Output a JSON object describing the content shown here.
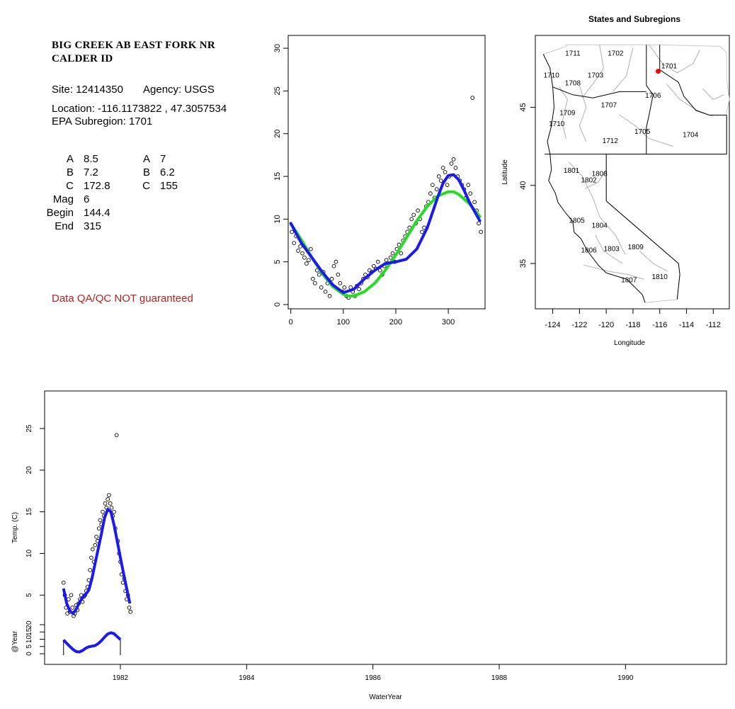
{
  "info": {
    "title_line1": "BIG CREEK AB EAST FORK NR",
    "title_line2": "CALDER ID",
    "site": "Site: 12414350",
    "agency": "Agency: USGS",
    "location": "Location: -116.1173822 , 47.3057534",
    "epa": "EPA Subregion: 1701",
    "params_left": [
      {
        "k": "A",
        "v": "8.5"
      },
      {
        "k": "B",
        "v": "7.2"
      },
      {
        "k": "C",
        "v": "172.8"
      },
      {
        "k": "Mag",
        "v": "6"
      },
      {
        "k": "Begin",
        "v": "144.4"
      },
      {
        "k": "End",
        "v": "315"
      }
    ],
    "params_right": [
      {
        "k": "A",
        "v": "7"
      },
      {
        "k": "B",
        "v": "6.2"
      },
      {
        "k": "C",
        "v": "155"
      }
    ],
    "qa_note": "Data QA/QC NOT guaranteed",
    "qa_color": "#b22222"
  },
  "chart_data": [
    {
      "id": "seasonal",
      "type": "scatter",
      "title": "",
      "xlabel": "",
      "ylabel": "",
      "xlim": [
        -5,
        370
      ],
      "ylim": [
        -0.5,
        31.5
      ],
      "x_ticks": [
        0,
        100,
        200,
        300
      ],
      "y_ticks": [
        0,
        5,
        10,
        15,
        20,
        25,
        30
      ],
      "series": [
        {
          "kind": "points",
          "color": "#000000",
          "x": [
            2,
            6,
            10,
            14,
            18,
            22,
            26,
            30,
            34,
            38,
            42,
            46,
            50,
            54,
            58,
            62,
            66,
            70,
            74,
            78,
            82,
            86,
            90,
            94,
            98,
            102,
            106,
            110,
            114,
            118,
            122,
            126,
            130,
            134,
            138,
            142,
            146,
            150,
            154,
            158,
            162,
            166,
            170,
            174,
            178,
            182,
            186,
            190,
            194,
            198,
            202,
            206,
            210,
            214,
            218,
            222,
            226,
            230,
            234,
            238,
            242,
            246,
            250,
            254,
            258,
            262,
            266,
            270,
            274,
            278,
            282,
            286,
            290,
            294,
            298,
            302,
            306,
            310,
            314,
            318,
            322,
            326,
            330,
            334,
            338,
            342,
            346,
            350,
            354,
            358,
            362
          ],
          "y": [
            8.5,
            7.2,
            8.0,
            6.3,
            6.8,
            6.0,
            5.5,
            4.8,
            5.2,
            6.5,
            3.0,
            2.5,
            4.0,
            3.5,
            2.0,
            3.8,
            1.5,
            2.5,
            1.0,
            3.0,
            4.5,
            5.0,
            3.5,
            2.5,
            1.5,
            2.0,
            1.0,
            0.8,
            2.0,
            1.5,
            1.0,
            2.2,
            1.8,
            2.5,
            3.0,
            3.5,
            3.2,
            4.0,
            3.8,
            4.5,
            4.2,
            5.0,
            4.0,
            3.5,
            4.5,
            5.2,
            4.8,
            5.5,
            6.0,
            5.0,
            6.5,
            7.0,
            6.0,
            7.5,
            8.0,
            8.5,
            9.0,
            10.0,
            10.5,
            9.5,
            11.0,
            10.0,
            8.5,
            9.0,
            11.5,
            12.0,
            13.0,
            14.0,
            12.5,
            13.5,
            15.0,
            14.5,
            16.0,
            15.5,
            14.0,
            15.0,
            16.5,
            17.0,
            16.0,
            15.0,
            14.5,
            14.0,
            13.5,
            12.5,
            14.0,
            13.0,
            24.2,
            12.0,
            11.0,
            9.5,
            8.5
          ]
        },
        {
          "kind": "line",
          "name": "",
          "color": "#22dd22",
          "x": [
            0,
            20,
            40,
            60,
            80,
            100,
            110,
            120,
            140,
            160,
            180,
            200,
            220,
            240,
            260,
            280,
            300,
            310,
            320,
            340,
            360
          ],
          "y": [
            9.5,
            7.6,
            5.5,
            3.6,
            2.1,
            1.2,
            1.0,
            1.0,
            1.5,
            2.5,
            4.0,
            5.8,
            7.8,
            9.8,
            11.5,
            12.7,
            13.2,
            13.2,
            12.9,
            11.8,
            10.3
          ]
        },
        {
          "kind": "line",
          "name": "",
          "color": "#1a1af0",
          "x": [
            0,
            20,
            40,
            60,
            80,
            100,
            120,
            140,
            160,
            180,
            200,
            220,
            240,
            260,
            270,
            280,
            290,
            300,
            310,
            320,
            330,
            340,
            350,
            360
          ],
          "y": [
            9.5,
            7.2,
            5.5,
            3.8,
            2.3,
            1.4,
            1.8,
            3.0,
            4.0,
            4.8,
            5.0,
            5.3,
            6.5,
            9.0,
            10.8,
            12.6,
            14.2,
            15.1,
            15.2,
            14.6,
            13.4,
            12.0,
            10.9,
            9.8
          ]
        }
      ]
    },
    {
      "id": "map",
      "type": "scatter",
      "title": "States and Subregions",
      "xlabel": "Longitude",
      "ylabel": "Latitude",
      "xlim": [
        -125.3,
        -110.8
      ],
      "ylim": [
        32.1,
        49.6
      ],
      "x_ticks": [
        -124,
        -122,
        -120,
        -118,
        -116,
        -114,
        -112
      ],
      "y_ticks": [
        35,
        40,
        45
      ],
      "regions": [
        {
          "label": "1701",
          "lon": -115.3,
          "lat": 47.5
        },
        {
          "label": "1702",
          "lon": -119.3,
          "lat": 48.3
        },
        {
          "label": "1703",
          "lon": -120.8,
          "lat": 46.9
        },
        {
          "label": "1704",
          "lon": -113.7,
          "lat": 43.1
        },
        {
          "label": "1705",
          "lon": -117.3,
          "lat": 43.3
        },
        {
          "label": "1706",
          "lon": -116.5,
          "lat": 45.6
        },
        {
          "label": "1707",
          "lon": -119.8,
          "lat": 45.0
        },
        {
          "label": "1708",
          "lon": -122.5,
          "lat": 46.4
        },
        {
          "label": "1709",
          "lon": -122.9,
          "lat": 44.5
        },
        {
          "label": "1710",
          "lon": -123.7,
          "lat": 43.8
        },
        {
          "label": "1711",
          "lon": -122.5,
          "lat": 48.3
        },
        {
          "label": "1712",
          "lon": -119.7,
          "lat": 42.7
        },
        {
          "label": "1801",
          "lon": -122.6,
          "lat": 40.8
        },
        {
          "label": "1802",
          "lon": -121.3,
          "lat": 40.2
        },
        {
          "label": "1803",
          "lon": -119.6,
          "lat": 35.8
        },
        {
          "label": "1804",
          "lon": -120.5,
          "lat": 37.3
        },
        {
          "label": "1805",
          "lon": -122.2,
          "lat": 37.6
        },
        {
          "label": "1806",
          "lon": -121.3,
          "lat": 35.7
        },
        {
          "label": "1807",
          "lon": -118.3,
          "lat": 33.8
        },
        {
          "label": "1808",
          "lon": -120.5,
          "lat": 40.6
        },
        {
          "label": "1809",
          "lon": -117.8,
          "lat": 35.9
        },
        {
          "label": "1810",
          "lon": -116.0,
          "lat": 34.0
        },
        {
          "label": "1710",
          "lon": -124.1,
          "lat": 46.9
        }
      ],
      "site": {
        "lon": -116.1173822,
        "lat": 47.3057534,
        "color": "#ff0000"
      }
    },
    {
      "id": "timeseries",
      "type": "line",
      "title": "",
      "xlabel": "WaterYear",
      "ylabel": "Temp. (C)",
      "ylabel2": "@Year",
      "xlim": [
        1980.8,
        1991.6
      ],
      "x_ticks": [
        1982,
        1984,
        1986,
        1988,
        1990
      ],
      "ylim": [
        2.3,
        29.5
      ],
      "y_ticks": [
        5,
        10,
        15,
        20,
        25
      ],
      "sub_ticks": [
        0,
        5,
        10,
        15,
        20
      ],
      "series": [
        {
          "kind": "points",
          "color": "#000000",
          "x": [
            1981.1,
            1981.12,
            1981.14,
            1981.16,
            1981.18,
            1981.2,
            1981.22,
            1981.24,
            1981.26,
            1981.28,
            1981.3,
            1981.32,
            1981.34,
            1981.36,
            1981.38,
            1981.4,
            1981.42,
            1981.44,
            1981.46,
            1981.48,
            1981.5,
            1981.52,
            1981.54,
            1981.56,
            1981.58,
            1981.6,
            1981.62,
            1981.64,
            1981.66,
            1981.68,
            1981.7,
            1981.72,
            1981.74,
            1981.76,
            1981.78,
            1981.8,
            1981.82,
            1981.84,
            1981.86,
            1981.88,
            1981.9,
            1981.92,
            1981.94,
            1981.96,
            1981.98,
            1982.0,
            1982.02,
            1982.04,
            1982.06,
            1982.08,
            1982.1,
            1982.12,
            1982.14,
            1982.16
          ],
          "y": [
            6.5,
            5.0,
            3.5,
            2.8,
            4.5,
            3.0,
            5.0,
            3.5,
            2.5,
            2.8,
            3.8,
            3.2,
            4.0,
            4.5,
            5.0,
            4.2,
            4.8,
            5.0,
            5.5,
            6.0,
            6.8,
            8.0,
            9.5,
            10.5,
            9.0,
            11.0,
            12.0,
            11.5,
            13.0,
            14.0,
            13.5,
            15.0,
            14.5,
            16.0,
            15.5,
            16.5,
            17.0,
            16.0,
            15.5,
            14.5,
            15.0,
            13.0,
            24.2,
            11.5,
            10.0,
            9.0,
            7.5,
            6.5,
            7.0,
            5.5,
            4.5,
            5.0,
            3.5,
            3.0
          ]
        },
        {
          "kind": "line",
          "name": "",
          "color": "#1a1af0",
          "x": [
            1981.1,
            1981.15,
            1981.2,
            1981.25,
            1981.3,
            1981.35,
            1981.4,
            1981.45,
            1981.5,
            1981.55,
            1981.6,
            1981.65,
            1981.7,
            1981.75,
            1981.8,
            1981.85,
            1981.9,
            1981.95,
            1982.0,
            1982.05,
            1982.1,
            1982.15
          ],
          "y": [
            5.8,
            4.0,
            3.1,
            2.8,
            3.3,
            4.1,
            4.7,
            5.1,
            5.6,
            7.0,
            8.8,
            10.6,
            12.4,
            14.3,
            15.3,
            15.0,
            13.4,
            11.5,
            9.5,
            7.6,
            5.8,
            4.0
          ]
        },
        {
          "kind": "line",
          "name": "",
          "color": "#1a1af0",
          "panel": "sub",
          "x": [
            1981.1,
            1981.15,
            1981.2,
            1981.25,
            1981.3,
            1981.35,
            1981.4,
            1981.45,
            1981.5,
            1981.55,
            1981.6,
            1981.65,
            1981.7,
            1981.75,
            1981.8,
            1981.85,
            1981.9,
            1981.95,
            1982.0
          ],
          "y": [
            9.5,
            7.2,
            5.0,
            3.0,
            1.5,
            1.2,
            2.2,
            3.8,
            4.8,
            5.2,
            5.6,
            7.0,
            9.0,
            11.5,
            13.6,
            14.5,
            13.8,
            11.8,
            9.8
          ]
        }
      ]
    }
  ]
}
